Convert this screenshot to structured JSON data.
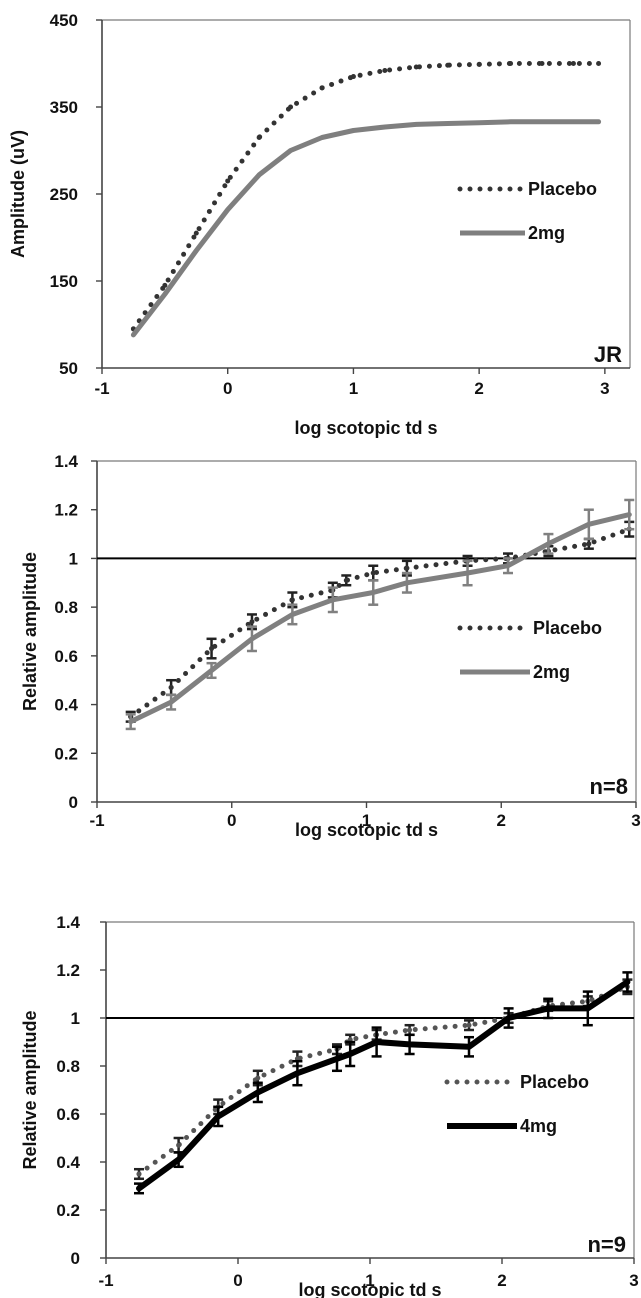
{
  "chart_data": [
    {
      "type": "line",
      "xlabel": "log scotopic td s",
      "ylabel": "Amplitude (uV)",
      "xlim": [
        -1,
        3.2
      ],
      "ylim": [
        50,
        450
      ],
      "x_ticks": [
        "-1",
        "0",
        "1",
        "2",
        "3"
      ],
      "y_ticks": [
        "50",
        "150",
        "250",
        "350",
        "450"
      ],
      "annotation": "JR",
      "legend_placement": "right",
      "grid": false,
      "series": [
        {
          "name": "Placebo",
          "style": "dotted",
          "color": "#333333",
          "x": [
            -0.75,
            -0.5,
            -0.25,
            0,
            0.25,
            0.5,
            0.75,
            1,
            1.25,
            1.5,
            1.75,
            2,
            2.25,
            2.5,
            2.75,
            2.95
          ],
          "y": [
            95,
            145,
            205,
            265,
            315,
            350,
            372,
            385,
            392,
            396,
            398,
            399,
            400,
            400,
            400,
            400
          ]
        },
        {
          "name": "2mg",
          "style": "solid",
          "color": "#7f7f7f",
          "x": [
            -0.75,
            -0.5,
            -0.25,
            0,
            0.25,
            0.5,
            0.75,
            1,
            1.25,
            1.5,
            1.75,
            2,
            2.25,
            2.5,
            2.75,
            2.95
          ],
          "y": [
            88,
            135,
            185,
            232,
            272,
            300,
            315,
            323,
            327,
            330,
            331,
            332,
            333,
            333,
            333,
            333
          ]
        }
      ]
    },
    {
      "type": "line",
      "xlabel": "log scotopic td s",
      "ylabel": "Relative amplitude",
      "xlim": [
        -1,
        3
      ],
      "ylim": [
        0,
        1.4
      ],
      "x_ticks": [
        "-1",
        "0",
        "1",
        "2",
        "3"
      ],
      "y_ticks": [
        "0",
        "0.2",
        "0.4",
        "0.6",
        "0.8",
        "1",
        "1.2",
        "1.4"
      ],
      "reference_line": 1,
      "annotation": "n=8",
      "legend_placement": "right",
      "grid": false,
      "series": [
        {
          "name": "Placebo",
          "style": "dotted",
          "color": "#333333",
          "x": [
            -0.75,
            -0.45,
            -0.15,
            0.15,
            0.45,
            0.75,
            0.85,
            1.05,
            1.3,
            1.75,
            2.05,
            2.35,
            2.65,
            2.95
          ],
          "y": [
            0.35,
            0.47,
            0.63,
            0.74,
            0.83,
            0.87,
            0.91,
            0.94,
            0.96,
            0.99,
            1.0,
            1.03,
            1.06,
            1.12
          ],
          "err": [
            0.02,
            0.03,
            0.04,
            0.03,
            0.03,
            0.03,
            0.02,
            0.03,
            0.03,
            0.02,
            0.02,
            0.02,
            0.02,
            0.03
          ]
        },
        {
          "name": "2mg",
          "style": "solid",
          "color": "#808080",
          "x": [
            -0.75,
            -0.45,
            -0.15,
            0.15,
            0.45,
            0.75,
            1.05,
            1.3,
            1.75,
            2.05,
            2.35,
            2.65,
            2.95
          ],
          "y": [
            0.33,
            0.41,
            0.54,
            0.67,
            0.77,
            0.83,
            0.86,
            0.9,
            0.94,
            0.97,
            1.06,
            1.14,
            1.18
          ],
          "err": [
            0.03,
            0.03,
            0.03,
            0.05,
            0.04,
            0.05,
            0.05,
            0.04,
            0.05,
            0.03,
            0.04,
            0.06,
            0.06
          ]
        }
      ]
    },
    {
      "type": "line",
      "xlabel": "log scotopic td s",
      "ylabel": "Relative amplitude",
      "xlim": [
        -1,
        3
      ],
      "ylim": [
        0,
        1.4
      ],
      "x_ticks": [
        "-1",
        "0",
        "1",
        "2",
        "3"
      ],
      "y_ticks": [
        "0",
        "0.2",
        "0.4",
        "0.6",
        "0.8",
        "1",
        "1.2",
        "1.4"
      ],
      "reference_line": 1,
      "annotation": "n=9",
      "legend_placement": "right",
      "grid": false,
      "series": [
        {
          "name": "Placebo",
          "style": "dotted",
          "color": "#555555",
          "x": [
            -0.75,
            -0.45,
            -0.15,
            0.15,
            0.45,
            0.75,
            0.85,
            1.05,
            1.3,
            1.75,
            2.05,
            2.35,
            2.65,
            2.95
          ],
          "y": [
            0.35,
            0.47,
            0.63,
            0.75,
            0.83,
            0.87,
            0.91,
            0.93,
            0.95,
            0.97,
            1.0,
            1.05,
            1.07,
            1.13
          ],
          "err": [
            0.02,
            0.03,
            0.03,
            0.03,
            0.03,
            0.02,
            0.02,
            0.02,
            0.02,
            0.02,
            0.02,
            0.02,
            0.02,
            0.03
          ]
        },
        {
          "name": "4mg",
          "style": "solid",
          "color": "#000000",
          "x": [
            -0.75,
            -0.45,
            -0.15,
            0.15,
            0.45,
            0.75,
            0.85,
            1.05,
            1.3,
            1.75,
            2.05,
            2.35,
            2.65,
            2.95
          ],
          "y": [
            0.29,
            0.41,
            0.59,
            0.69,
            0.77,
            0.83,
            0.85,
            0.9,
            0.89,
            0.88,
            1.0,
            1.04,
            1.04,
            1.15
          ],
          "err": [
            0.02,
            0.03,
            0.04,
            0.04,
            0.05,
            0.05,
            0.05,
            0.06,
            0.04,
            0.04,
            0.04,
            0.04,
            0.07,
            0.04
          ]
        }
      ]
    }
  ]
}
